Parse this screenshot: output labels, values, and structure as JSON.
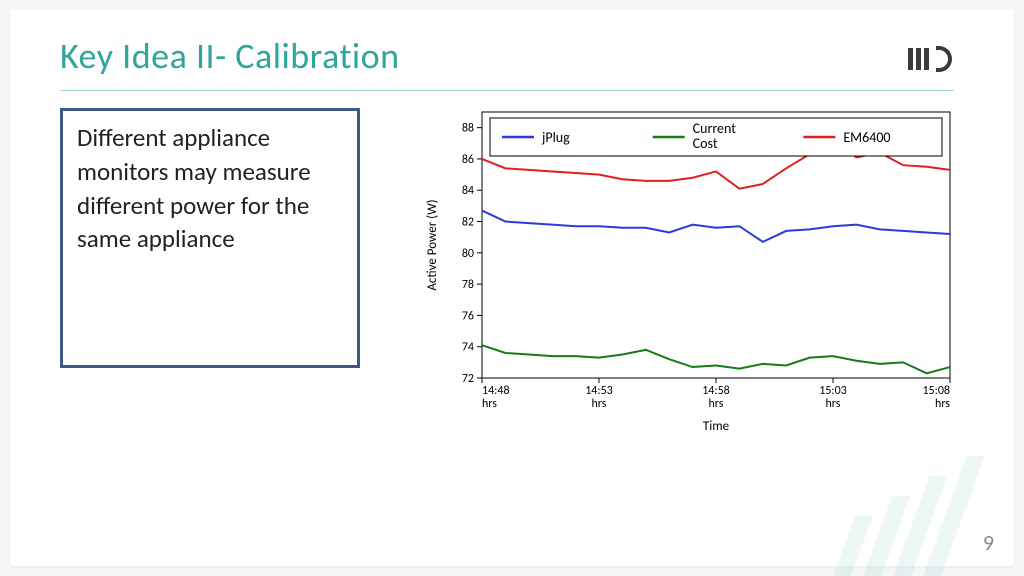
{
  "title": {
    "text": "Key Idea II- Calibration",
    "color": "#2fa69a",
    "fontsize": 36,
    "underline_color": "#9ed6cf"
  },
  "page_number": "9",
  "textbox": {
    "text": "Different appliance monitors may measure different power for the same appliance",
    "border_color": "#3a5a8a",
    "fontsize": 25
  },
  "chart": {
    "type": "line",
    "background_color": "#ffffff",
    "border_color": "#000000",
    "xlabel": "Time",
    "ylabel": "Active Power (W)",
    "label_fontsize": 13,
    "tick_fontsize": 12,
    "ylim": [
      72,
      89
    ],
    "yticks": [
      72,
      74,
      76,
      78,
      80,
      82,
      84,
      86,
      88
    ],
    "xticks_labels": [
      "14:48\nhrs",
      "14:53\nhrs",
      "14:58\nhrs",
      "15:03\nhrs",
      "15:08\nhrs"
    ],
    "xticks_pos": [
      0,
      5,
      10,
      15,
      20
    ],
    "xlim": [
      0,
      20
    ],
    "line_width": 2,
    "legend": {
      "border_color": "#000000",
      "fontsize": 14,
      "items": [
        {
          "label": "jPlug",
          "color": "#2b3bd8"
        },
        {
          "label": "Current\nCost",
          "color": "#1a7a1a"
        },
        {
          "label": "EM6400",
          "color": "#e02020"
        }
      ]
    },
    "series": [
      {
        "name": "jPlug",
        "color": "#2b3bd8",
        "x": [
          0,
          1,
          2,
          3,
          4,
          5,
          6,
          7,
          8,
          9,
          10,
          11,
          12,
          13,
          14,
          15,
          16,
          17,
          18,
          19,
          20
        ],
        "y": [
          82.7,
          82.0,
          81.9,
          81.8,
          81.7,
          81.7,
          81.6,
          81.6,
          81.3,
          81.8,
          81.6,
          81.7,
          80.7,
          81.4,
          81.5,
          81.7,
          81.8,
          81.5,
          81.4,
          81.3,
          81.2
        ]
      },
      {
        "name": "Current Cost",
        "color": "#1a7a1a",
        "x": [
          0,
          1,
          2,
          3,
          4,
          5,
          6,
          7,
          8,
          9,
          10,
          11,
          12,
          13,
          14,
          15,
          16,
          17,
          18,
          19,
          20
        ],
        "y": [
          74.1,
          73.6,
          73.5,
          73.4,
          73.4,
          73.3,
          73.5,
          73.8,
          73.2,
          72.7,
          72.8,
          72.6,
          72.9,
          72.8,
          73.3,
          73.4,
          73.1,
          72.9,
          73.0,
          72.3,
          72.7
        ]
      },
      {
        "name": "EM6400",
        "color": "#e02020",
        "x": [
          0,
          1,
          2,
          3,
          4,
          5,
          6,
          7,
          8,
          9,
          10,
          11,
          12,
          13,
          14,
          15,
          16,
          17,
          18,
          19,
          20
        ],
        "y": [
          86.0,
          85.4,
          85.3,
          85.2,
          85.1,
          85.0,
          84.7,
          84.6,
          84.6,
          84.8,
          85.2,
          84.1,
          84.4,
          85.4,
          86.3,
          87.2,
          86.1,
          86.4,
          85.6,
          85.5,
          85.3
        ]
      }
    ]
  },
  "logo": {
    "name": "iiitd-logo",
    "bar_color": "#3a3a3a"
  }
}
